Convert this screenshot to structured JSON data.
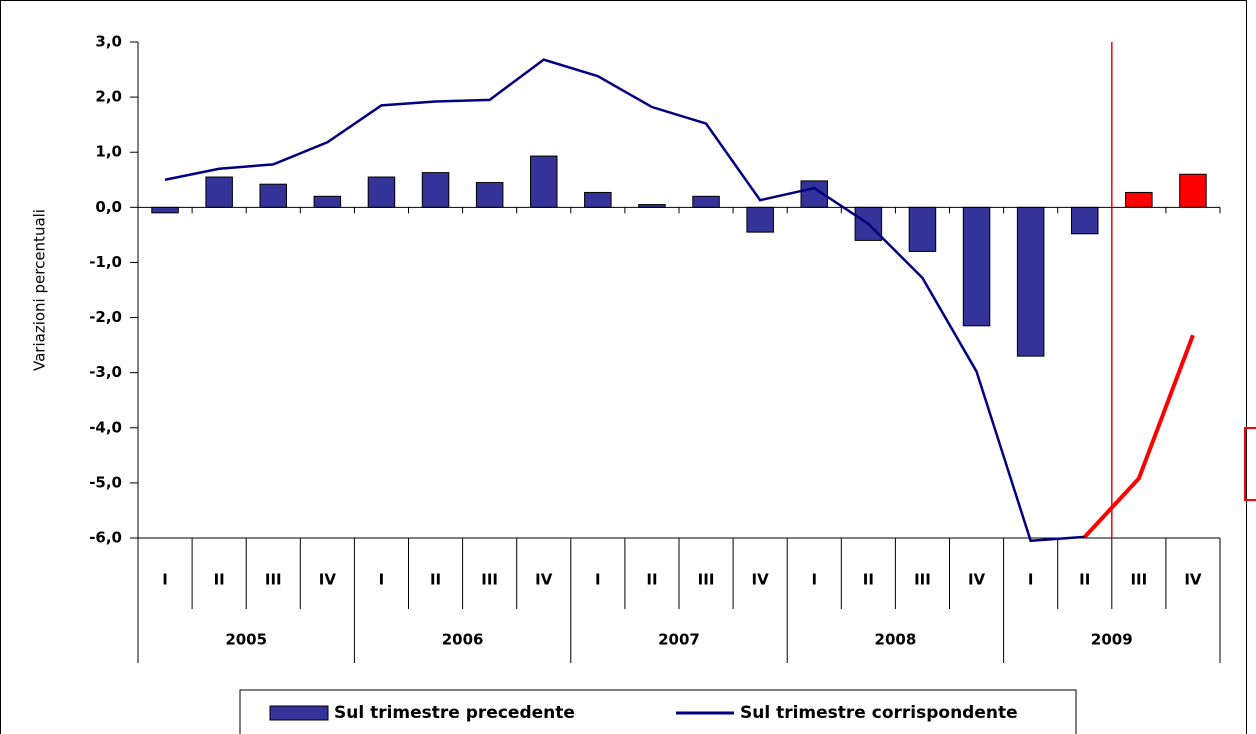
{
  "chart_data": {
    "type": "bar",
    "y_label": "Variazioni percentuali",
    "categories": [
      "I",
      "II",
      "III",
      "IV",
      "I",
      "II",
      "III",
      "IV",
      "I",
      "II",
      "III",
      "IV",
      "I",
      "II",
      "III",
      "IV",
      "I",
      "II",
      "III",
      "IV"
    ],
    "group_labels": [
      "2005",
      "2006",
      "2007",
      "2008",
      "2009"
    ],
    "ylim": [
      -6,
      3
    ],
    "yticks": [
      {
        "value": 3,
        "label": "3,0"
      },
      {
        "value": 2,
        "label": "2,0"
      },
      {
        "value": 1,
        "label": "1,0"
      },
      {
        "value": 0,
        "label": "0,0"
      },
      {
        "value": -1,
        "label": "-1,0"
      },
      {
        "value": -2,
        "label": "-2,0"
      },
      {
        "value": -3,
        "label": "-3,0"
      },
      {
        "value": -4,
        "label": "-4,0"
      },
      {
        "value": -5,
        "label": "-5,0"
      },
      {
        "value": -6,
        "label": "-6,0"
      }
    ],
    "series": [
      {
        "name": "Sul trimestre precedente",
        "kind": "bar",
        "color": "#333399",
        "values": [
          -0.1,
          0.55,
          0.42,
          0.2,
          0.55,
          0.63,
          0.45,
          0.93,
          0.27,
          0.05,
          0.2,
          -0.45,
          0.48,
          -0.6,
          -0.8,
          -2.15,
          -2.7,
          -0.48,
          0.27,
          0.6
        ],
        "colors": [
          "#333399",
          "#333399",
          "#333399",
          "#333399",
          "#333399",
          "#333399",
          "#333399",
          "#333399",
          "#333399",
          "#333399",
          "#333399",
          "#333399",
          "#333399",
          "#333399",
          "#333399",
          "#333399",
          "#333399",
          "#333399",
          "#ff0000",
          "#ff0000"
        ]
      },
      {
        "name": "Sul trimestre corrispondente",
        "kind": "line",
        "color": "#000080",
        "values": [
          0.5,
          0.7,
          0.78,
          1.18,
          1.85,
          1.92,
          1.95,
          2.68,
          2.38,
          1.82,
          1.52,
          0.13,
          0.35,
          -0.3,
          -1.28,
          -2.98,
          -6.05,
          -5.98,
          null,
          null
        ]
      }
    ],
    "forecast_line": {
      "color": "#ff0000",
      "values": [
        null,
        null,
        null,
        null,
        null,
        null,
        null,
        null,
        null,
        null,
        null,
        null,
        null,
        null,
        null,
        null,
        null,
        -5.98,
        -4.92,
        -2.32
      ]
    }
  }
}
